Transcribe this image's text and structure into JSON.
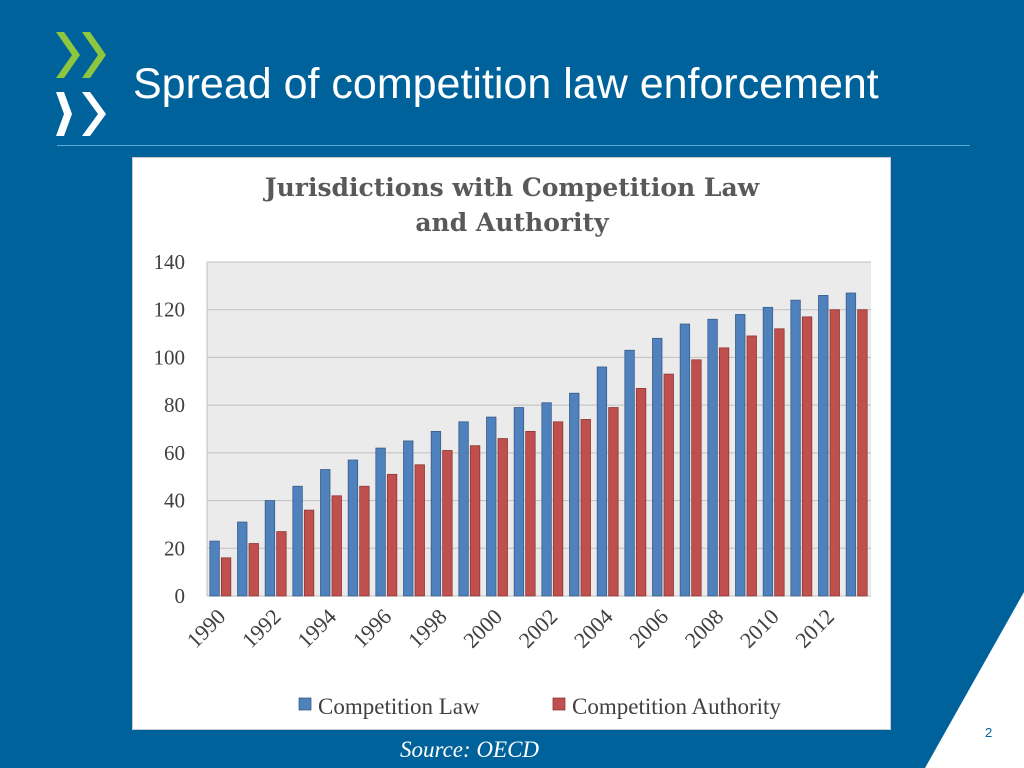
{
  "slide": {
    "title": "Spread of competition law enforcement",
    "source": "Source: OECD",
    "page_number": "2"
  },
  "colors": {
    "background": "#00629b",
    "series_law": "#4f81bd",
    "series_authority": "#c0504d",
    "logo_green": "#8dc63f",
    "plot_bg": "#ebebeb"
  },
  "chart_data": {
    "type": "bar",
    "title": "Jurisdictions with Competition Law and Authority",
    "title_lines": [
      "Jurisdictions with Competition Law",
      "and Authority"
    ],
    "categories": [
      "1990",
      "1991",
      "1992",
      "1993",
      "1994",
      "1995",
      "1996",
      "1997",
      "1998",
      "1999",
      "2000",
      "2001",
      "2002",
      "2003",
      "2004",
      "2005",
      "2006",
      "2007",
      "2008",
      "2009",
      "2010",
      "2011",
      "2012",
      "2013"
    ],
    "x_tick_labels": [
      "1990",
      "1992",
      "1994",
      "1996",
      "1998",
      "2000",
      "2002",
      "2004",
      "2006",
      "2008",
      "2010",
      "2012"
    ],
    "series": [
      {
        "name": "Competition Law",
        "values": [
          23,
          31,
          40,
          46,
          53,
          57,
          62,
          65,
          69,
          73,
          75,
          79,
          81,
          85,
          96,
          103,
          108,
          114,
          116,
          118,
          121,
          124,
          126,
          127
        ]
      },
      {
        "name": "Competition Authority",
        "values": [
          16,
          22,
          27,
          36,
          42,
          46,
          51,
          55,
          61,
          63,
          66,
          69,
          73,
          74,
          79,
          87,
          93,
          99,
          104,
          109,
          112,
          117,
          120,
          120
        ]
      }
    ],
    "ylim": [
      0,
      140
    ],
    "y_ticks": [
      "0",
      "20",
      "40",
      "60",
      "80",
      "100",
      "120",
      "140"
    ],
    "grid": true,
    "legend_position": "bottom"
  }
}
